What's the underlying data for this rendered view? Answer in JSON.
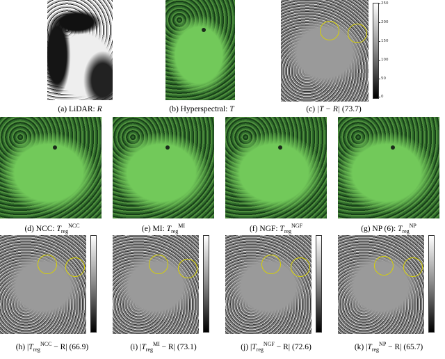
{
  "figure": {
    "top_row": [
      {
        "id": "a",
        "prefix": "(a) LiDAR: ",
        "var": "R",
        "rest": "",
        "kind": "lidar"
      },
      {
        "id": "b",
        "prefix": "(b) Hyperspectral: ",
        "var": "T",
        "rest": "",
        "kind": "hyper"
      },
      {
        "id": "c",
        "prefix": "(c) ",
        "var": "|T − R|",
        "rest": " (73.7)",
        "kind": "diff"
      }
    ],
    "middle_row": [
      {
        "id": "d",
        "prefix": "(d) NCC: ",
        "var": "T",
        "sub": "reg",
        "sup": "NCC",
        "rest": ""
      },
      {
        "id": "e",
        "prefix": "(e) MI: ",
        "var": "T",
        "sub": "reg",
        "sup": "MI",
        "rest": ""
      },
      {
        "id": "f",
        "prefix": "(f) NGF: ",
        "var": "T",
        "sub": "reg",
        "sup": "NGF",
        "rest": ""
      },
      {
        "id": "g",
        "prefix": "(g) NP (6): ",
        "var": "T",
        "sub": "reg",
        "sup": "NP",
        "rest": ""
      }
    ],
    "bottom_row": [
      {
        "id": "h",
        "prefix": "(h) |",
        "var": "T",
        "sub": "reg",
        "sup": "NCC",
        "rest": " − R| (66.9)"
      },
      {
        "id": "i",
        "prefix": "(i) |",
        "var": "T",
        "sub": "reg",
        "sup": "MI",
        "rest": " − R| (73.1)"
      },
      {
        "id": "j",
        "prefix": "(j) |",
        "var": "T",
        "sub": "reg",
        "sup": "NGF",
        "rest": " − R| (72.6)"
      },
      {
        "id": "k",
        "prefix": "(k) |",
        "var": "T",
        "sub": "reg",
        "sup": "NP",
        "rest": " − R| (65.7)"
      }
    ],
    "colorbar_ticks": [
      "250",
      "200",
      "150",
      "100",
      "50",
      "0"
    ],
    "colors": {
      "circle": "#d8d200",
      "vegetation_light": "#72c95a",
      "vegetation_dark": "#2c5f2a"
    }
  }
}
